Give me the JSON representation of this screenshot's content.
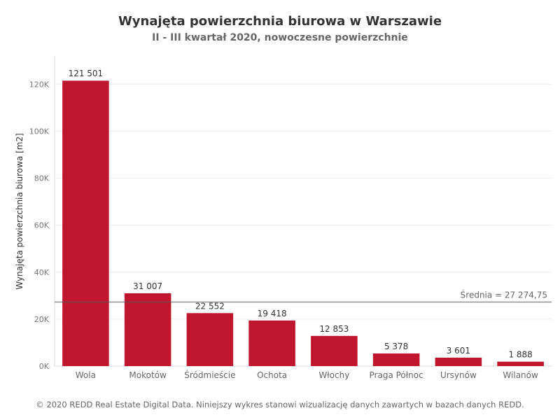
{
  "chart_data": {
    "type": "bar",
    "title": "Wynajęta powierzchnia biurowa w Warszawie",
    "subtitle": "II - III kwartał 2020, nowoczesne powierzchnie",
    "xlabel": "",
    "ylabel": "Wynajęta powierzchnia biurowa [m2]",
    "ylim": [
      0,
      132000
    ],
    "yticks": [
      0,
      20000,
      40000,
      60000,
      80000,
      100000,
      120000
    ],
    "ytick_labels": [
      "0K",
      "20K",
      "40K",
      "60K",
      "80K",
      "100K",
      "120K"
    ],
    "categories": [
      "Wola",
      "Mokotów",
      "Śródmieście",
      "Ochota",
      "Włochy",
      "Praga Północ",
      "Ursynów",
      "Wilanów"
    ],
    "values": [
      121501,
      31007,
      22552,
      19418,
      12853,
      5378,
      3601,
      1888
    ],
    "value_labels": [
      "121 501",
      "31 007",
      "22 552",
      "19 418",
      "12 853",
      "5 378",
      "3 601",
      "1 888"
    ],
    "reference_line": {
      "value": 27274.75,
      "label": "Średnia = 27 274,75"
    },
    "bar_color": "#c0172f",
    "grid": true,
    "legend": "none"
  },
  "footer": "© 2020 REDD Real Estate Digital Data. Niniejszy wykres stanowi wizualizację danych zawartych w bazach danych REDD."
}
